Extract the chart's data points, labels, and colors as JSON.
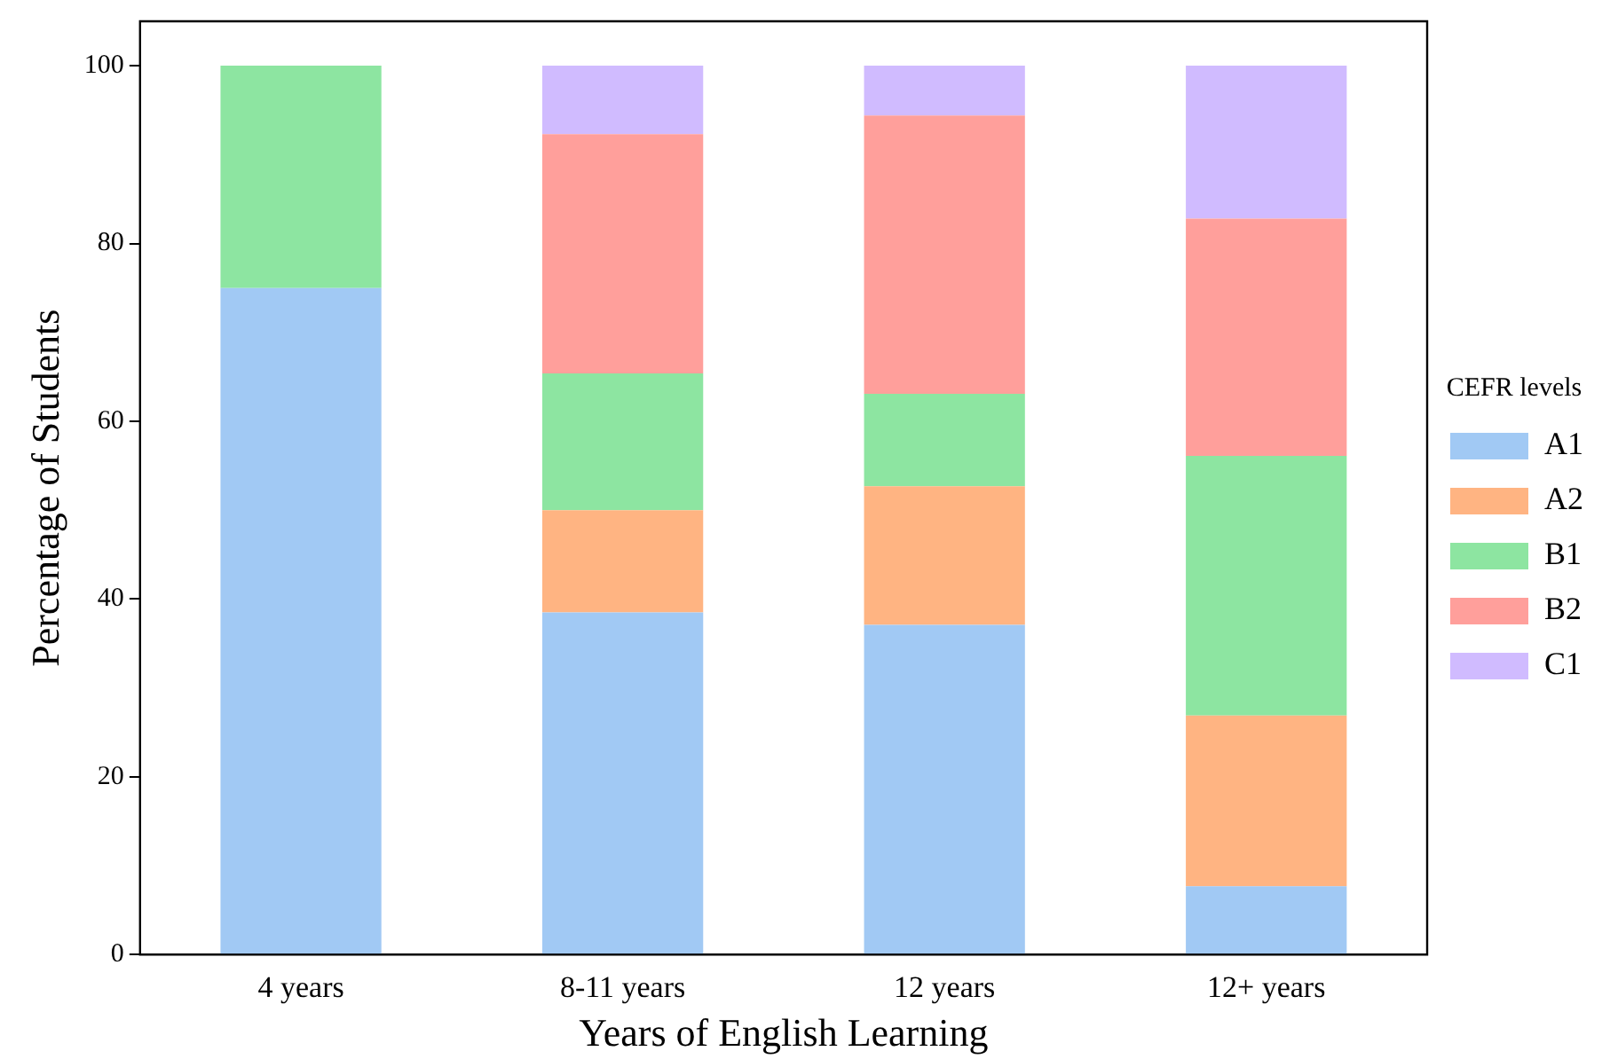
{
  "chart_data": {
    "type": "bar",
    "stacked": true,
    "xlabel": "Years of English Learning",
    "ylabel": "Percentage of Students",
    "legend_title": "CEFR levels",
    "legend": "right",
    "categories": [
      "4 years",
      "8-11 years",
      "12 years",
      "12+ years"
    ],
    "ylim": [
      0,
      105
    ],
    "yticks": [
      0,
      20,
      40,
      60,
      80,
      100
    ],
    "series": [
      {
        "name": "A1",
        "color": "#a1c9f4",
        "values": [
          75,
          38.5,
          37.1,
          7.7
        ]
      },
      {
        "name": "A2",
        "color": "#ffb482",
        "values": [
          0,
          11.5,
          15.6,
          19.2
        ]
      },
      {
        "name": "B1",
        "color": "#8de5a1",
        "values": [
          25,
          15.4,
          10.4,
          29.2
        ]
      },
      {
        "name": "B2",
        "color": "#ff9f9b",
        "values": [
          0,
          26.9,
          31.3,
          26.7
        ]
      },
      {
        "name": "C1",
        "color": "#d0bbff",
        "values": [
          0,
          7.7,
          5.6,
          17.2
        ]
      }
    ]
  }
}
